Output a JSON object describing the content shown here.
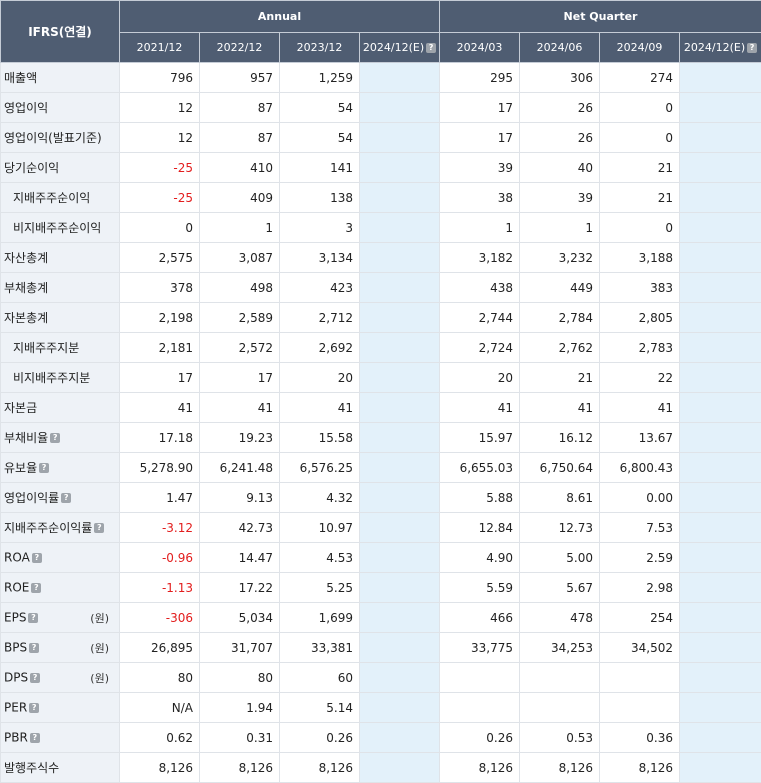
{
  "header": {
    "corner": "IFRS(연결)",
    "annual_label": "Annual",
    "quarter_label": "Net Quarter",
    "periods": [
      "2021/12",
      "2022/12",
      "2023/12",
      "2024/12(E)",
      "2024/03",
      "2024/06",
      "2024/09",
      "2024/12(E)"
    ]
  },
  "estimate_column_color": "#e3f1fa",
  "negative_value_color": "#e21d1d",
  "rows": [
    {
      "label": "매출액",
      "values": [
        "796",
        "957",
        "1,259",
        "",
        "295",
        "306",
        "274",
        ""
      ]
    },
    {
      "label": "영업이익",
      "values": [
        "12",
        "87",
        "54",
        "",
        "17",
        "26",
        "0",
        ""
      ]
    },
    {
      "label": "영업이익(발표기준)",
      "values": [
        "12",
        "87",
        "54",
        "",
        "17",
        "26",
        "0",
        ""
      ]
    },
    {
      "label": "당기순이익",
      "values": [
        "-25",
        "410",
        "141",
        "",
        "39",
        "40",
        "21",
        ""
      ]
    },
    {
      "label": "지배주주순이익",
      "values": [
        "-25",
        "409",
        "138",
        "",
        "38",
        "39",
        "21",
        ""
      ]
    },
    {
      "label": "비지배주주순이익",
      "values": [
        "0",
        "1",
        "3",
        "",
        "1",
        "1",
        "0",
        ""
      ]
    },
    {
      "label": "자산총계",
      "values": [
        "2,575",
        "3,087",
        "3,134",
        "",
        "3,182",
        "3,232",
        "3,188",
        ""
      ]
    },
    {
      "label": "부채총계",
      "values": [
        "378",
        "498",
        "423",
        "",
        "438",
        "449",
        "383",
        ""
      ]
    },
    {
      "label": "자본총계",
      "values": [
        "2,198",
        "2,589",
        "2,712",
        "",
        "2,744",
        "2,784",
        "2,805",
        ""
      ]
    },
    {
      "label": "지배주주지분",
      "values": [
        "2,181",
        "2,572",
        "2,692",
        "",
        "2,724",
        "2,762",
        "2,783",
        ""
      ]
    },
    {
      "label": "비지배주주지분",
      "values": [
        "17",
        "17",
        "20",
        "",
        "20",
        "21",
        "22",
        ""
      ]
    },
    {
      "label": "자본금",
      "values": [
        "41",
        "41",
        "41",
        "",
        "41",
        "41",
        "41",
        ""
      ]
    },
    {
      "label": "부채비율",
      "values": [
        "17.18",
        "19.23",
        "15.58",
        "",
        "15.97",
        "16.12",
        "13.67",
        ""
      ]
    },
    {
      "label": "유보율",
      "values": [
        "5,278.90",
        "6,241.48",
        "6,576.25",
        "",
        "6,655.03",
        "6,750.64",
        "6,800.43",
        ""
      ]
    },
    {
      "label": "영업이익률",
      "values": [
        "1.47",
        "9.13",
        "4.32",
        "",
        "5.88",
        "8.61",
        "0.00",
        ""
      ]
    },
    {
      "label": "지배주주순이익률",
      "values": [
        "-3.12",
        "42.73",
        "10.97",
        "",
        "12.84",
        "12.73",
        "7.53",
        ""
      ]
    },
    {
      "label": "ROA",
      "values": [
        "-0.96",
        "14.47",
        "4.53",
        "",
        "4.90",
        "5.00",
        "2.59",
        ""
      ]
    },
    {
      "label": "ROE",
      "values": [
        "-1.13",
        "17.22",
        "5.25",
        "",
        "5.59",
        "5.67",
        "2.98",
        ""
      ]
    },
    {
      "label": "EPS",
      "unit": "(원)",
      "values": [
        "-306",
        "5,034",
        "1,699",
        "",
        "466",
        "478",
        "254",
        ""
      ]
    },
    {
      "label": "BPS",
      "unit": "(원)",
      "values": [
        "26,895",
        "31,707",
        "33,381",
        "",
        "33,775",
        "34,253",
        "34,502",
        ""
      ]
    },
    {
      "label": "DPS",
      "unit": "(원)",
      "values": [
        "80",
        "80",
        "60",
        "",
        "",
        "",
        "",
        ""
      ]
    },
    {
      "label": "PER",
      "values": [
        "N/A",
        "1.94",
        "5.14",
        "",
        "",
        "",
        "",
        ""
      ]
    },
    {
      "label": "PBR",
      "values": [
        "0.62",
        "0.31",
        "0.26",
        "",
        "0.26",
        "0.53",
        "0.36",
        ""
      ]
    },
    {
      "label": "발행주식수",
      "values": [
        "8,126",
        "8,126",
        "8,126",
        "",
        "8,126",
        "8,126",
        "8,126",
        ""
      ]
    }
  ]
}
